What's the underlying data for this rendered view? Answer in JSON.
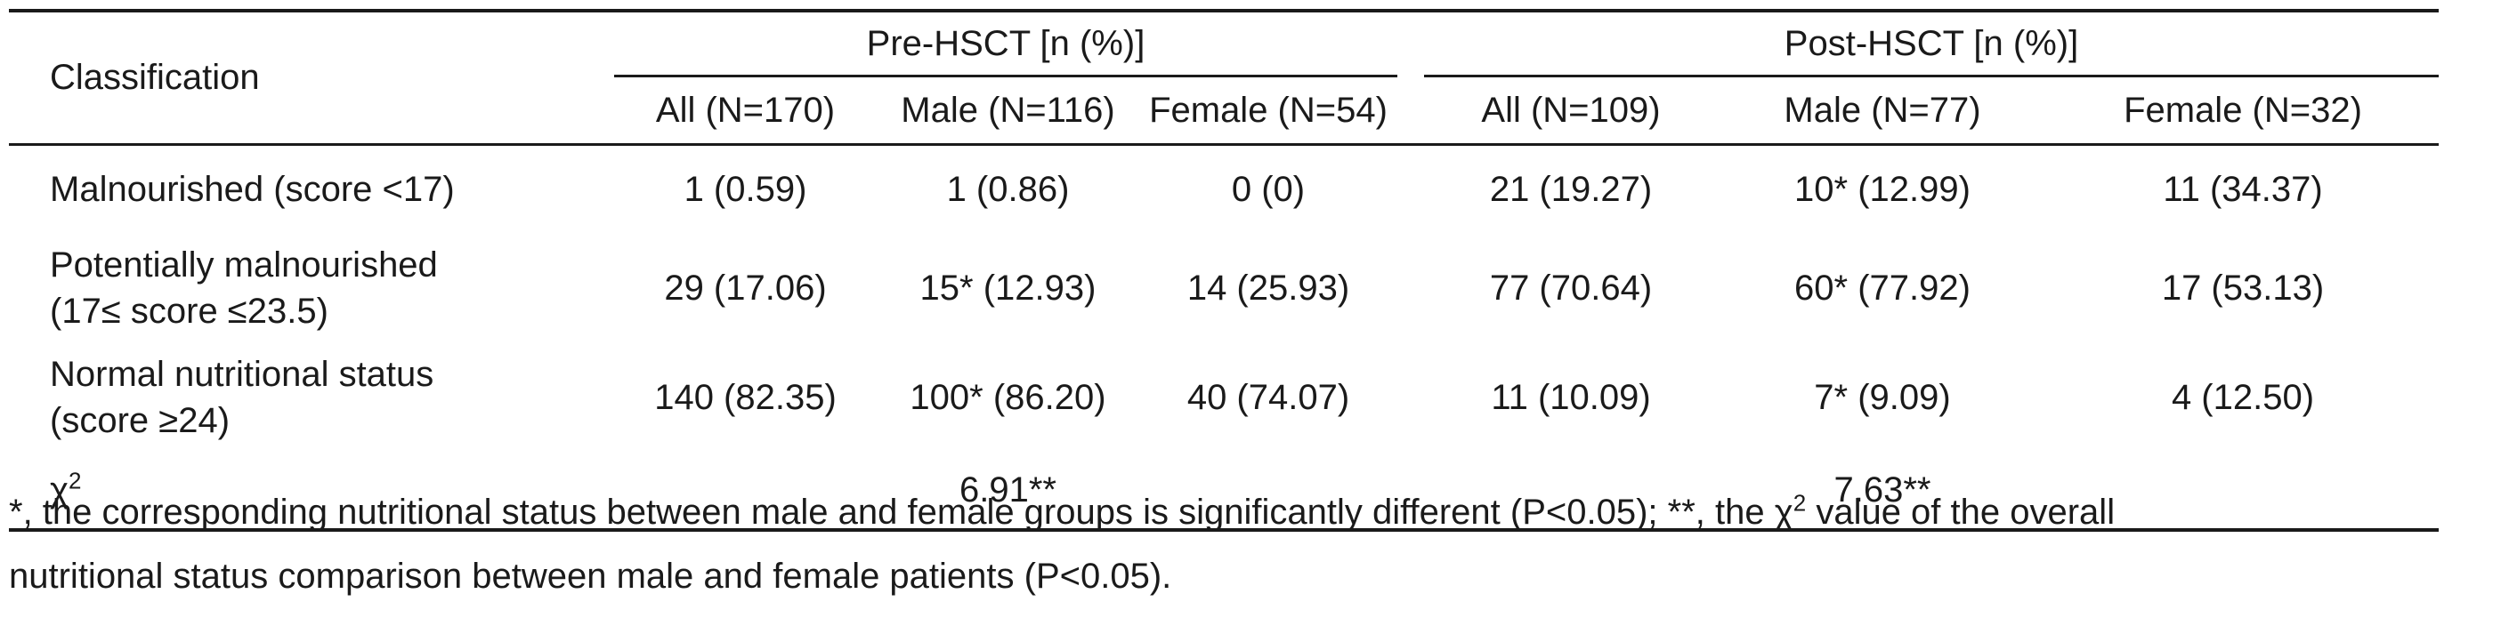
{
  "table": {
    "classification_header": "Classification",
    "groups": [
      "Pre-HSCT [n (%)]",
      "Post-HSCT [n (%)]"
    ],
    "subheaders": [
      "All (N=170)",
      "Male (N=116)",
      "Female (N=54)",
      "All (N=109)",
      "Male (N=77)",
      "Female (N=32)"
    ],
    "rows": [
      {
        "label_line1": "Malnourished (score <17)",
        "label_line2": "",
        "values": [
          "1 (0.59)",
          "1 (0.86)",
          "0 (0)",
          "21 (19.27)",
          "10* (12.99)",
          "11 (34.37)"
        ]
      },
      {
        "label_line1": "Potentially malnourished",
        "label_line2": "(17≤ score ≤23.5)",
        "values": [
          "29 (17.06)",
          "15* (12.93)",
          "14 (25.93)",
          "77 (70.64)",
          "60* (77.92)",
          "17 (53.13)"
        ]
      },
      {
        "label_line1": "Normal nutritional status",
        "label_line2": "(score ≥24)",
        "values": [
          "140 (82.35)",
          "100* (86.20)",
          "40 (74.07)",
          "11 (10.09)",
          "7* (9.09)",
          "4 (12.50)"
        ]
      }
    ],
    "chi_row": {
      "label_base": "χ",
      "label_sup": "2",
      "pre_value": "6.91**",
      "post_value": "7.63**"
    }
  },
  "footnote": {
    "part1": "*, the corresponding nutritional status between male and female groups is significantly different (P<0.05); **, the ",
    "chi_base": "χ",
    "chi_sup": "2",
    "part2": " value of the overall",
    "line2": "nutritional status comparison between male and female patients (P<0.05)."
  }
}
